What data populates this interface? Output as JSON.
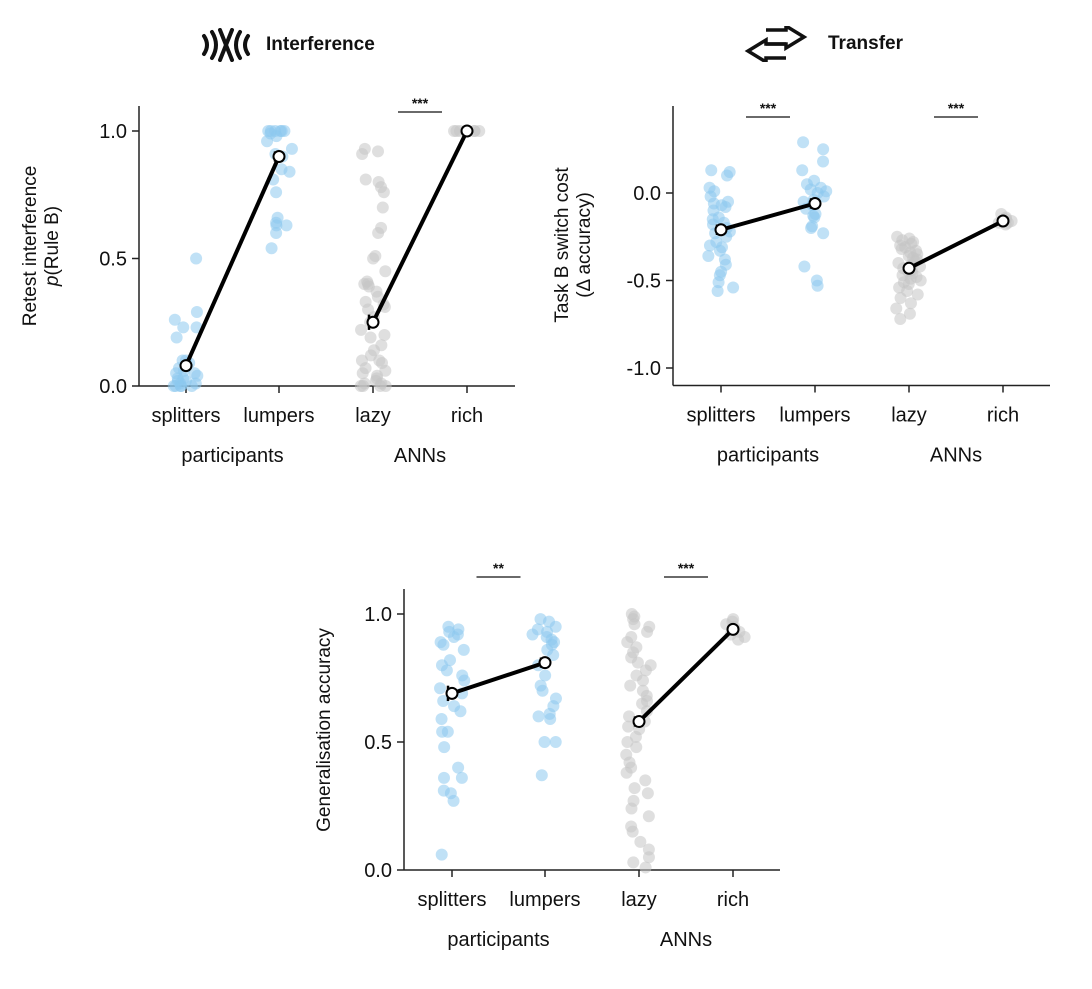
{
  "headers": {
    "interference": {
      "label": "Interference",
      "icon": "interference-waves-icon"
    },
    "transfer": {
      "label": "Transfer",
      "icon": "bidirectional-arrows-icon"
    }
  },
  "colors": {
    "participants_dots": "#8cc8ee",
    "anns_dots": "#c4c4c4",
    "mean_line": "#000000",
    "mean_marker_fill": "#ffffff",
    "axis": "#222222"
  },
  "chart_data": [
    {
      "type": "scatter",
      "id": "interference",
      "title": "",
      "ylabel": [
        "Retest interference",
        "p(Rule B)"
      ],
      "ylim": [
        0.0,
        1.1
      ],
      "yticks": [
        0.0,
        0.5,
        1.0
      ],
      "ytick_labels": [
        "0.0",
        "0.5",
        "1.0"
      ],
      "categories": [
        "splitters",
        "lumpers",
        "lazy",
        "rich"
      ],
      "groups": [
        {
          "label": "participants",
          "categories": [
            "splitters",
            "lumpers"
          ]
        },
        {
          "label": "ANNs",
          "categories": [
            "lazy",
            "rich"
          ]
        }
      ],
      "means": [
        0.08,
        0.9,
        0.25,
        1.0
      ],
      "errors": [
        0.01,
        0.02,
        0.03,
        0.0
      ],
      "lines": [
        [
          0,
          1
        ],
        [
          2,
          3
        ]
      ],
      "significance": [
        {
          "between": [
            2,
            3
          ],
          "label": "***"
        }
      ],
      "points": [
        [
          0.5,
          0.29,
          0.26,
          0.23,
          0.23,
          0.19,
          0.1,
          0.1,
          0.09,
          0.07,
          0.05,
          0.04,
          0.03,
          0.03,
          0.02,
          0.01,
          0.0,
          0.0,
          0.0,
          0.0,
          0.0,
          0.01,
          0.02,
          0.05,
          0.06
        ],
        [
          1.0,
          1.0,
          1.0,
          1.0,
          1.0,
          1.0,
          0.99,
          0.98,
          0.96,
          0.93,
          0.91,
          0.9,
          0.85,
          0.84,
          0.81,
          0.76,
          0.66,
          0.64,
          0.63,
          0.63,
          0.6,
          0.54
        ],
        [
          0.93,
          0.92,
          0.91,
          0.81,
          0.8,
          0.78,
          0.76,
          0.7,
          0.62,
          0.6,
          0.51,
          0.5,
          0.45,
          0.41,
          0.4,
          0.4,
          0.39,
          0.37,
          0.35,
          0.33,
          0.32,
          0.31,
          0.3,
          0.27,
          0.25,
          0.22,
          0.2,
          0.19,
          0.16,
          0.14,
          0.12,
          0.1,
          0.1,
          0.09,
          0.07,
          0.06,
          0.05,
          0.04,
          0.03,
          0.02,
          0.01,
          0.01,
          0.0,
          0.0,
          0.0,
          0.0
        ],
        [
          1.0,
          1.0,
          1.0,
          1.0,
          1.0,
          1.0,
          1.0,
          1.0
        ]
      ]
    },
    {
      "type": "scatter",
      "id": "transfer",
      "title": "",
      "ylabel": [
        "Task B switch cost",
        "(Δ accuracy)"
      ],
      "ylim": [
        -1.1,
        0.5
      ],
      "yticks": [
        -1.0,
        -0.5,
        0.0
      ],
      "ytick_labels": [
        "-1.0",
        "-0.5",
        "0.0"
      ],
      "categories": [
        "splitters",
        "lumpers",
        "lazy",
        "rich"
      ],
      "groups": [
        {
          "label": "participants",
          "categories": [
            "splitters",
            "lumpers"
          ]
        },
        {
          "label": "ANNs",
          "categories": [
            "lazy",
            "rich"
          ]
        }
      ],
      "means": [
        -0.21,
        -0.06,
        -0.43,
        -0.16
      ],
      "errors": [
        0.03,
        0.03,
        0.01,
        0.005
      ],
      "lines": [
        [
          0,
          1
        ],
        [
          2,
          3
        ]
      ],
      "significance": [
        {
          "between": [
            0,
            1
          ],
          "label": "***"
        },
        {
          "between": [
            2,
            3
          ],
          "label": "***"
        }
      ],
      "points": [
        [
          0.13,
          0.12,
          0.1,
          0.03,
          0.01,
          -0.02,
          -0.05,
          -0.06,
          -0.07,
          -0.08,
          -0.1,
          -0.14,
          -0.15,
          -0.17,
          -0.18,
          -0.2,
          -0.22,
          -0.23,
          -0.25,
          -0.28,
          -0.3,
          -0.31,
          -0.33,
          -0.36,
          -0.38,
          -0.41,
          -0.45,
          -0.47,
          -0.51,
          -0.54,
          -0.56
        ],
        [
          0.29,
          0.25,
          0.18,
          0.13,
          0.07,
          0.05,
          0.03,
          0.02,
          0.01,
          0.0,
          -0.02,
          -0.04,
          -0.05,
          -0.07,
          -0.09,
          -0.12,
          -0.13,
          -0.14,
          -0.19,
          -0.2,
          -0.23,
          -0.42,
          -0.5,
          -0.53
        ],
        [
          -0.25,
          -0.26,
          -0.27,
          -0.28,
          -0.29,
          -0.3,
          -0.31,
          -0.32,
          -0.33,
          -0.34,
          -0.35,
          -0.36,
          -0.37,
          -0.38,
          -0.39,
          -0.4,
          -0.41,
          -0.42,
          -0.43,
          -0.44,
          -0.45,
          -0.46,
          -0.47,
          -0.48,
          -0.49,
          -0.5,
          -0.51,
          -0.52,
          -0.54,
          -0.56,
          -0.58,
          -0.6,
          -0.63,
          -0.66,
          -0.69,
          -0.72
        ],
        [
          -0.12,
          -0.14,
          -0.15,
          -0.16,
          -0.16,
          -0.17,
          -0.17,
          -0.18
        ]
      ]
    },
    {
      "type": "scatter",
      "id": "generalisation",
      "title": "",
      "ylabel": [
        "Generalisation accuracy"
      ],
      "ylim": [
        0.0,
        1.1
      ],
      "yticks": [
        0.0,
        0.5,
        1.0
      ],
      "ytick_labels": [
        "0.0",
        "0.5",
        "1.0"
      ],
      "categories": [
        "splitters",
        "lumpers",
        "lazy",
        "rich"
      ],
      "groups": [
        {
          "label": "participants",
          "categories": [
            "splitters",
            "lumpers"
          ]
        },
        {
          "label": "ANNs",
          "categories": [
            "lazy",
            "rich"
          ]
        }
      ],
      "means": [
        0.69,
        0.81,
        0.58,
        0.94
      ],
      "errors": [
        0.03,
        0.02,
        0.02,
        0.005
      ],
      "lines": [
        [
          0,
          1
        ],
        [
          2,
          3
        ]
      ],
      "significance": [
        {
          "between": [
            0,
            1
          ],
          "label": "**"
        },
        {
          "between": [
            2,
            3
          ],
          "label": "***"
        }
      ],
      "points": [
        [
          0.95,
          0.94,
          0.93,
          0.92,
          0.91,
          0.89,
          0.88,
          0.86,
          0.82,
          0.8,
          0.78,
          0.76,
          0.74,
          0.71,
          0.69,
          0.66,
          0.64,
          0.62,
          0.59,
          0.54,
          0.54,
          0.48,
          0.4,
          0.36,
          0.36,
          0.31,
          0.3,
          0.27,
          0.06
        ],
        [
          0.98,
          0.97,
          0.95,
          0.94,
          0.93,
          0.92,
          0.91,
          0.9,
          0.89,
          0.88,
          0.86,
          0.84,
          0.8,
          0.76,
          0.72,
          0.7,
          0.67,
          0.64,
          0.61,
          0.6,
          0.59,
          0.5,
          0.5,
          0.37
        ],
        [
          1.0,
          0.99,
          0.98,
          0.96,
          0.95,
          0.93,
          0.91,
          0.89,
          0.87,
          0.85,
          0.83,
          0.81,
          0.8,
          0.78,
          0.76,
          0.74,
          0.72,
          0.7,
          0.68,
          0.66,
          0.65,
          0.62,
          0.6,
          0.58,
          0.56,
          0.55,
          0.52,
          0.5,
          0.48,
          0.45,
          0.42,
          0.4,
          0.38,
          0.35,
          0.32,
          0.3,
          0.27,
          0.24,
          0.21,
          0.17,
          0.15,
          0.11,
          0.08,
          0.05,
          0.03,
          0.01
        ],
        [
          0.98,
          0.97,
          0.96,
          0.95,
          0.94,
          0.93,
          0.92,
          0.91,
          0.9
        ]
      ]
    }
  ]
}
